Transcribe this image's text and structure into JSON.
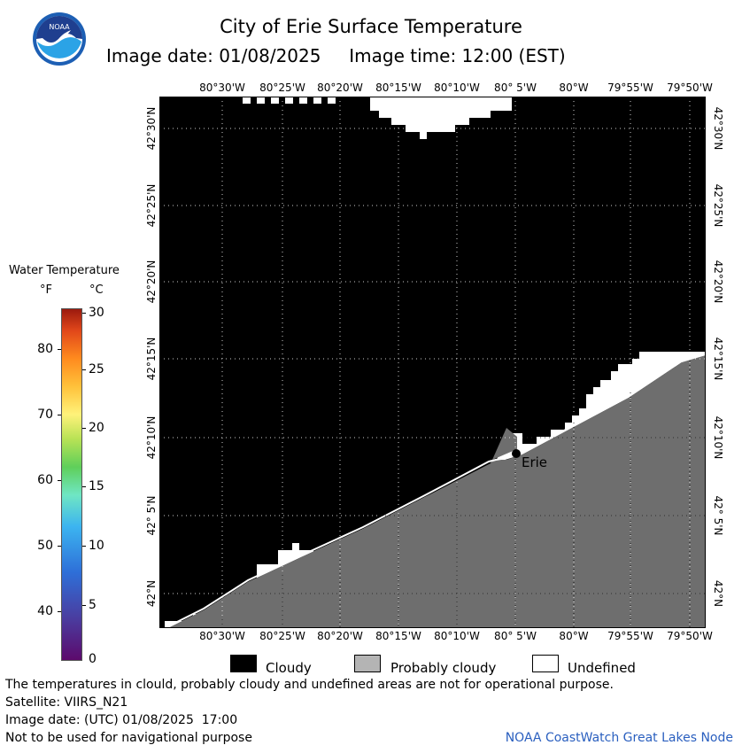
{
  "logo": {
    "text": "NOAA"
  },
  "title": "City of Erie Surface Temperature",
  "subtitle": {
    "date": "Image date: 01/08/2025",
    "time": "Image time: 12:00 (EST)"
  },
  "top_ticks": [
    "80°30'W",
    "80°25'W",
    "80°20'W",
    "80°15'W",
    "80°10'W",
    "80° 5'W",
    "80°W",
    "79°55'W",
    "79°50'W"
  ],
  "bottom_ticks": [
    "80°30'W",
    "80°25'W",
    "80°20'W",
    "80°15'W",
    "80°10'W",
    "80° 5'W",
    "80°W",
    "79°55'W",
    "79°50'W"
  ],
  "left_ticks": [
    "42°30'N",
    "42°25'N",
    "42°20'N",
    "42°15'N",
    "42°10'N",
    "42° 5'N",
    "42°N"
  ],
  "right_ticks": [
    "42°30'N",
    "42°25'N",
    "42°20'N",
    "42°15'N",
    "42°10'N",
    "42° 5'N",
    "42°N"
  ],
  "legend": {
    "title": "Water Temperature",
    "unit_f": "°F",
    "unit_c": "°C",
    "f_values": [
      "80",
      "70",
      "60",
      "50",
      "40"
    ],
    "c_values": [
      "30",
      "25",
      "20",
      "15",
      "10",
      "5",
      "0"
    ],
    "colors": {
      "min": "#5c0a6c",
      "max": "#9b1a0e"
    }
  },
  "map": {
    "city": "Erie",
    "colors": {
      "cloudy": "#000000",
      "probably_cloudy": "#6e6e6e",
      "undefined": "#ffffff"
    }
  },
  "key": {
    "cloudy": "Cloudy",
    "probably_cloudy": "Probably cloudy",
    "undefined": "Undefined"
  },
  "footer": {
    "disclaimer": "The temperatures in clould, probably cloudy and undefined areas are not for operational purpose.",
    "satellite": "Satellite: VIIRS_N21",
    "utc_date": "Image date: (UTC) 01/08/2025  17:00",
    "nav_note": "Not to be used for navigational purpose",
    "credit": "NOAA CoastWatch Great Lakes Node"
  }
}
